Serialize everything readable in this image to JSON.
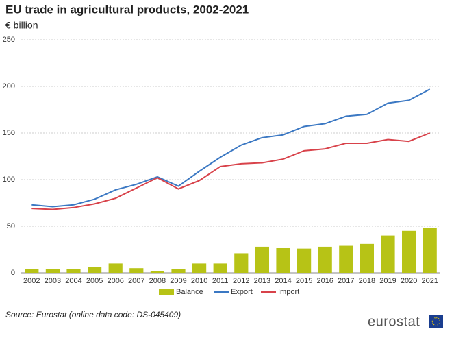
{
  "chart_data": {
    "type": "combo",
    "title": "EU trade in agricultural products, 2002-2021",
    "subtitle": "€ billion",
    "categories": [
      "2002",
      "2003",
      "2004",
      "2005",
      "2006",
      "2007",
      "2008",
      "2009",
      "2010",
      "2011",
      "2012",
      "2013",
      "2014",
      "2015",
      "2016",
      "2017",
      "2018",
      "2019",
      "2020",
      "2021"
    ],
    "series": [
      {
        "name": "Balance",
        "type": "bar",
        "color": "#b7c316",
        "values": [
          4,
          4,
          4,
          6,
          10,
          5,
          2,
          4,
          10,
          10,
          21,
          28,
          27,
          26,
          28,
          29,
          31,
          40,
          45,
          48
        ]
      },
      {
        "name": "Export",
        "type": "line",
        "color": "#3b78c3",
        "values": [
          73,
          71,
          73,
          79,
          89,
          95,
          103,
          93,
          109,
          124,
          137,
          145,
          148,
          157,
          160,
          168,
          170,
          182,
          185,
          197
        ]
      },
      {
        "name": "Import",
        "type": "line",
        "color": "#d8424a",
        "values": [
          69,
          68,
          70,
          74,
          80,
          91,
          102,
          90,
          99,
          114,
          117,
          118,
          122,
          131,
          133,
          139,
          139,
          143,
          141,
          150
        ]
      }
    ],
    "ylim": [
      0,
      250
    ],
    "yticks": [
      0,
      50,
      100,
      150,
      200,
      250
    ],
    "grid": true,
    "source": "Source: Eurostat (online data code: DS-045409)"
  },
  "logo": "eurostat"
}
